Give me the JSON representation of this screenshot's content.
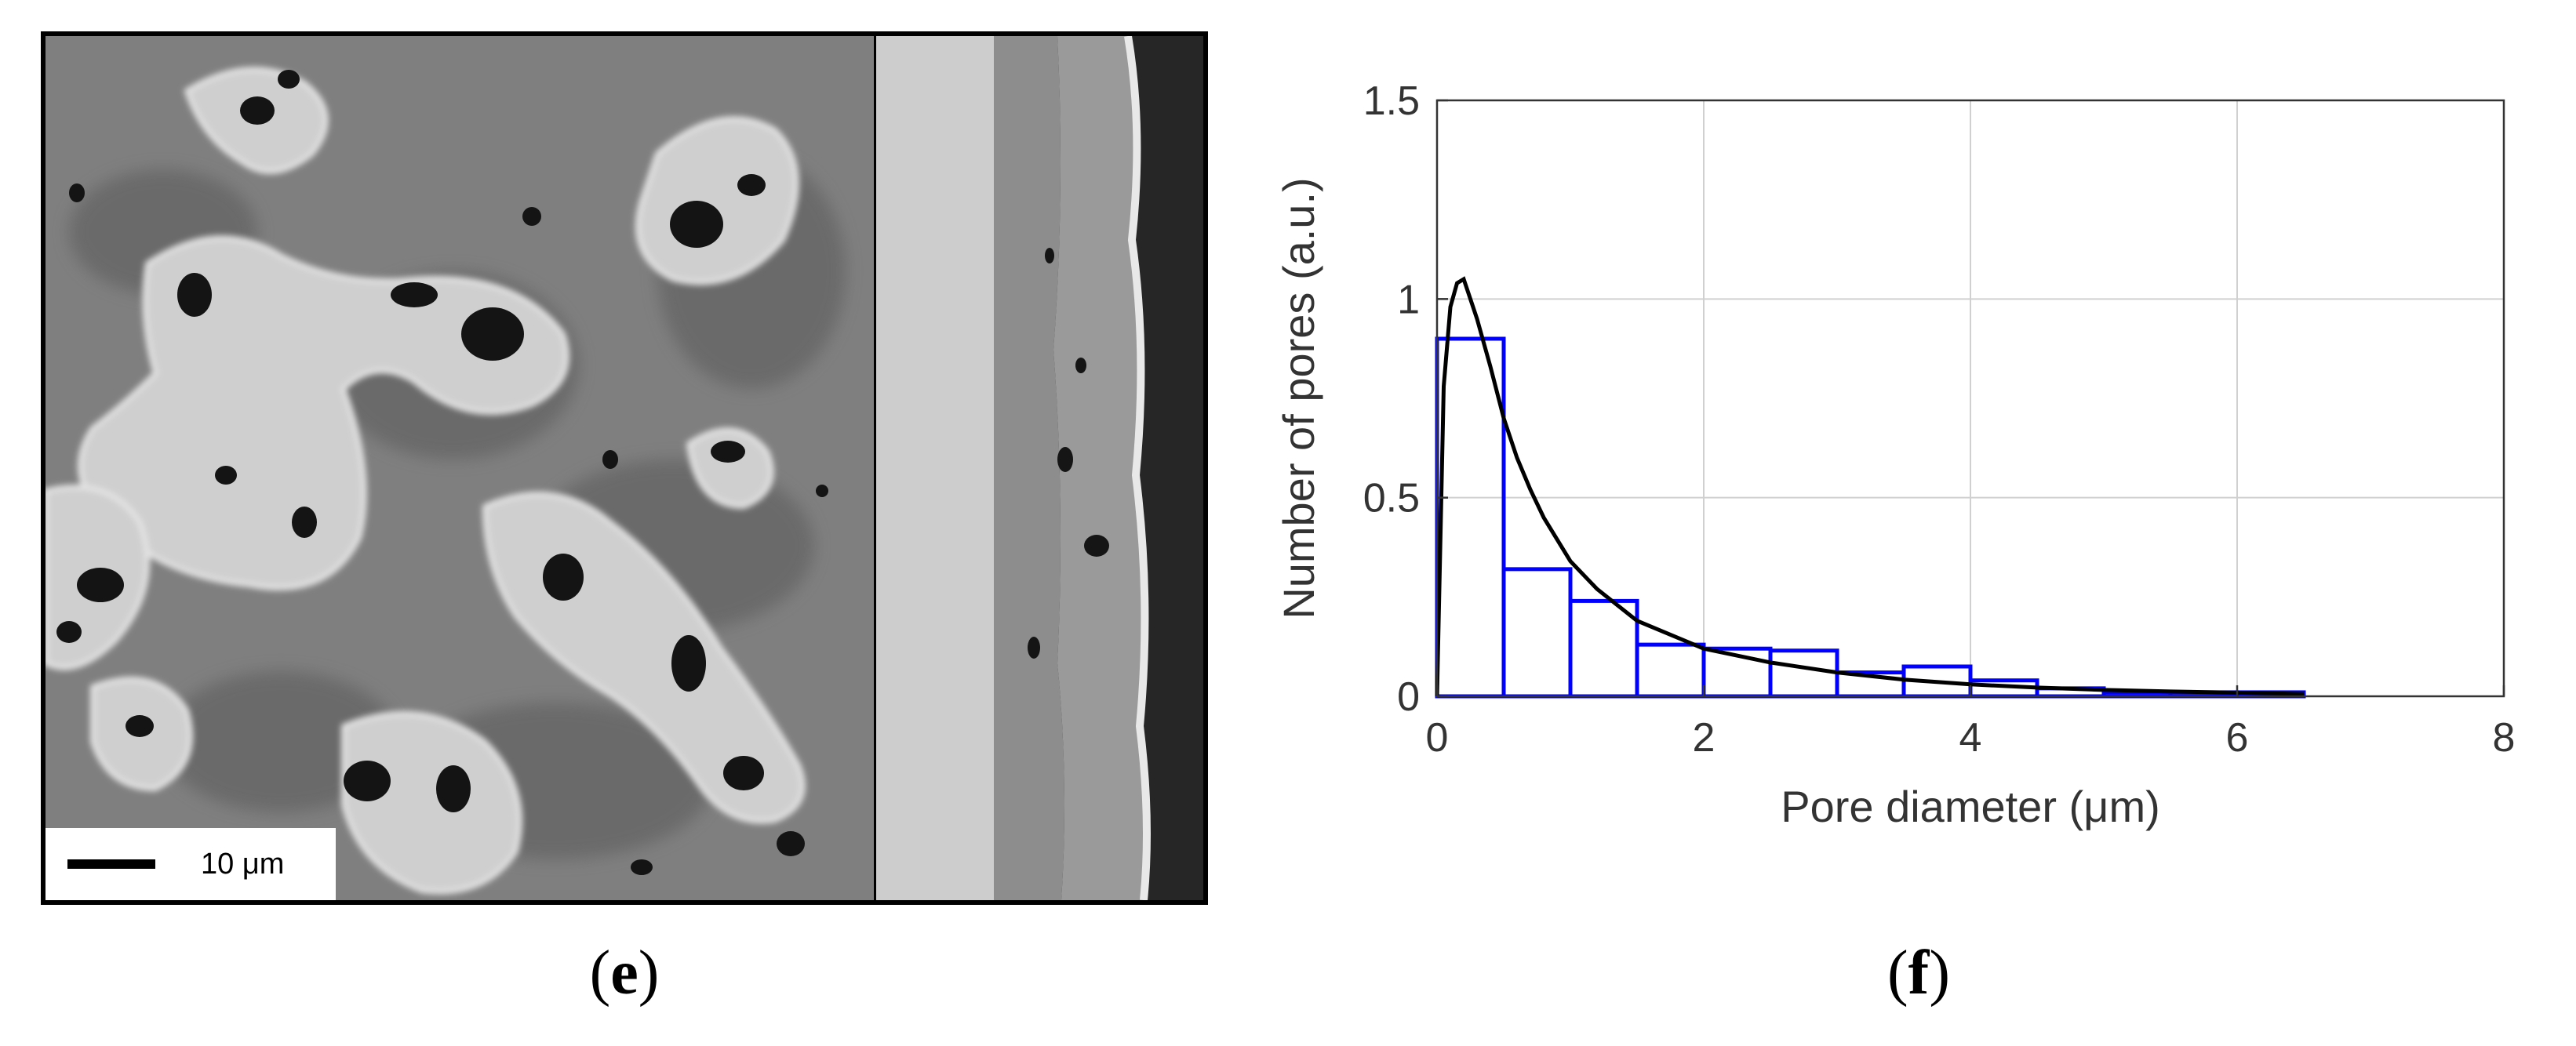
{
  "panel_e": {
    "label_open": "(",
    "label_letter": "e",
    "label_close": ")",
    "scale_bar_text": "10 μm"
  },
  "panel_f": {
    "label_open": "(",
    "label_letter": "f",
    "label_close": ")"
  },
  "chart_data": {
    "type": "bar",
    "subtype": "histogram with fitted distribution curve",
    "title": "",
    "xlabel": "Pore diameter (μm)",
    "ylabel": "Number of pores (a.u.)",
    "xlim": [
      0,
      8
    ],
    "ylim": [
      0,
      1.5
    ],
    "xticks": [
      0,
      2,
      4,
      6,
      8
    ],
    "xtick_labels": [
      "0",
      "2",
      "4",
      "6",
      "8"
    ],
    "yticks": [
      0,
      0.5,
      1,
      1.5
    ],
    "ytick_labels": [
      "0",
      "0.5",
      "1",
      "1.5"
    ],
    "grid": true,
    "bin_edges": [
      0,
      0.5,
      1.0,
      1.5,
      2.0,
      2.5,
      3.0,
      3.5,
      4.0,
      4.5,
      5.0,
      5.5,
      6.0,
      6.5
    ],
    "values": [
      0.9,
      0.32,
      0.24,
      0.13,
      0.12,
      0.115,
      0.06,
      0.075,
      0.04,
      0.02,
      0.01,
      0.01,
      0.01
    ],
    "curve_x": [
      0,
      0.05,
      0.1,
      0.15,
      0.2,
      0.25,
      0.3,
      0.4,
      0.5,
      0.6,
      0.7,
      0.8,
      1.0,
      1.2,
      1.5,
      2.0,
      2.5,
      3.0,
      3.5,
      4.0,
      4.5,
      5.0,
      5.5,
      6.0,
      6.5
    ],
    "curve_y": [
      0,
      0.78,
      0.98,
      1.04,
      1.05,
      1.0,
      0.95,
      0.83,
      0.7,
      0.6,
      0.52,
      0.45,
      0.34,
      0.27,
      0.19,
      0.12,
      0.085,
      0.06,
      0.042,
      0.03,
      0.022,
      0.016,
      0.012,
      0.009,
      0.006
    ],
    "colors": {
      "bars": "#0000ff",
      "curve": "#000000",
      "grid": "#d0d0d0",
      "axes": "#333333"
    }
  }
}
